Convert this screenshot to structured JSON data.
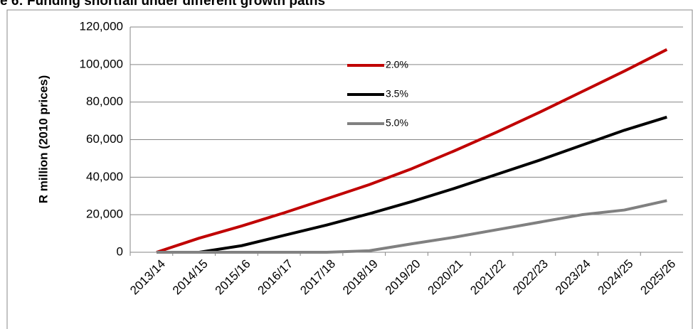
{
  "chart_data": {
    "type": "line",
    "title": "e 6: Funding shortfall under different growth paths",
    "y_label": "R million (2010 prices)",
    "categories": [
      "2013/14",
      "2014/15",
      "2015/16",
      "2016/17",
      "2017/18",
      "2018/19",
      "2019/20",
      "2020/21",
      "2021/22",
      "2022/23",
      "2023/24",
      "2024/25",
      "2025/26"
    ],
    "series": [
      {
        "name": "2.0%",
        "color": "#c00000",
        "values": [
          0,
          7500,
          14000,
          21000,
          28500,
          36000,
          44500,
          54000,
          64000,
          74500,
          85500,
          96500,
          108000
        ]
      },
      {
        "name": "3.5%",
        "color": "#000000",
        "values": [
          0,
          0,
          3500,
          9000,
          14500,
          20500,
          27000,
          34000,
          41500,
          49000,
          57000,
          65000,
          72000
        ]
      },
      {
        "name": "5.0%",
        "color": "#808080",
        "values": [
          0,
          0,
          0,
          0,
          0,
          800,
          4500,
          8000,
          12000,
          16000,
          20000,
          22500,
          27500
        ]
      }
    ],
    "ylim": [
      0,
      120000
    ],
    "yticks": [
      0,
      {
        "value": 20000,
        "label": "20,000"
      },
      {
        "value": 40000,
        "label": "40,000"
      },
      {
        "value": 60000,
        "label": "60,000"
      },
      {
        "value": 80000,
        "label": "80,000"
      },
      {
        "value": 100000,
        "label": "100,000"
      },
      {
        "value": 120000,
        "label": "120,000"
      }
    ],
    "grid": true,
    "legend": "top-center"
  }
}
